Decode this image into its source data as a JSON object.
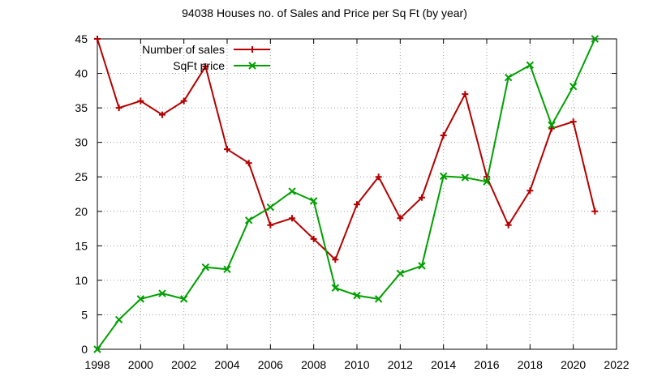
{
  "chart_data": {
    "type": "line",
    "title": "94038 Houses no. of Sales and Price per Sq Ft (by year)",
    "xlabel": "",
    "ylabel": "",
    "xlim": [
      1998,
      2022
    ],
    "ylim": [
      0,
      45
    ],
    "xticks": [
      1998,
      2000,
      2002,
      2004,
      2006,
      2008,
      2010,
      2012,
      2014,
      2016,
      2018,
      2020,
      2022
    ],
    "yticks": [
      0,
      5,
      10,
      15,
      20,
      25,
      30,
      35,
      40,
      45
    ],
    "grid": true,
    "legend_position": "top-left",
    "x": [
      1998,
      1999,
      2000,
      2001,
      2002,
      2003,
      2004,
      2005,
      2006,
      2007,
      2008,
      2009,
      2010,
      2011,
      2012,
      2013,
      2014,
      2015,
      2016,
      2017,
      2018,
      2019,
      2020,
      2021
    ],
    "series": [
      {
        "name": "Number of sales",
        "color": "#b40000",
        "marker": "plus",
        "values": [
          45,
          35,
          36,
          34,
          36,
          41,
          29,
          27,
          18,
          19,
          16,
          13,
          21,
          25,
          19,
          22,
          31,
          37,
          25,
          18,
          23,
          32,
          33,
          20
        ]
      },
      {
        "name": "SqFt price",
        "color": "#00a000",
        "marker": "cross",
        "values": [
          0,
          4.3,
          7.3,
          8.1,
          7.3,
          11.9,
          11.6,
          18.7,
          20.6,
          22.9,
          21.5,
          8.9,
          7.8,
          7.3,
          11,
          12.1,
          25.1,
          24.9,
          24.3,
          39.4,
          41.2,
          32.5,
          38.1,
          45
        ]
      }
    ]
  }
}
